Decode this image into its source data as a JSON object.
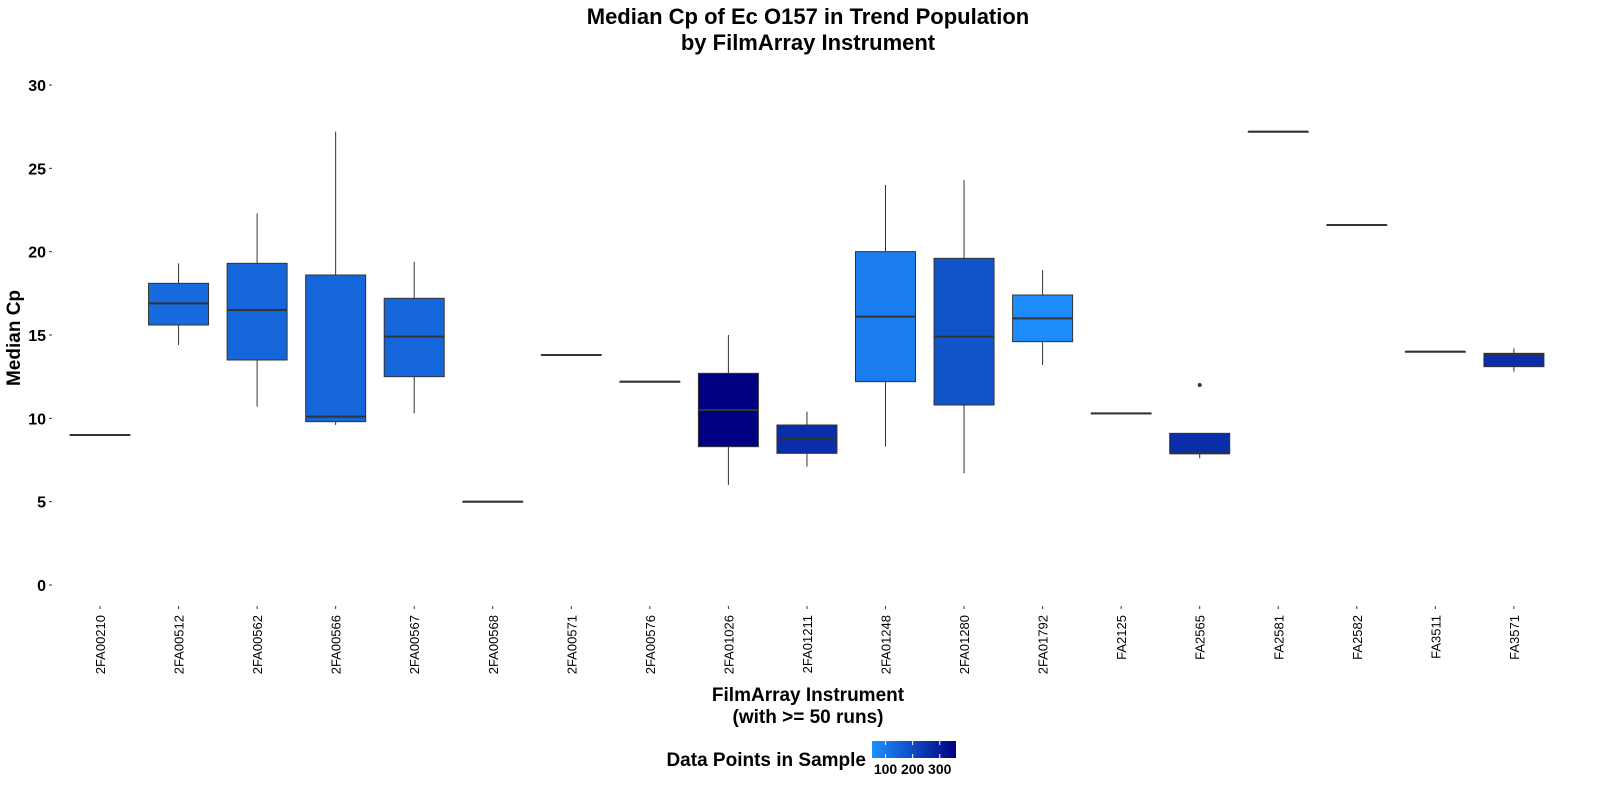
{
  "chart_data": {
    "type": "boxplot",
    "title": "Median Cp of Ec O157 in Trend Population",
    "subtitle": "by FilmArray Instrument",
    "xlabel": "FilmArray Instrument",
    "xlabel_line2": "(with >= 50 runs)",
    "ylabel": "Median Cp",
    "ylim": [
      0,
      30
    ],
    "yticks": [
      0,
      5,
      10,
      15,
      20,
      25,
      30
    ],
    "grid": false,
    "legend": {
      "title": "Data Points in Sample",
      "placement": "bottom",
      "ticks": [
        100,
        200,
        300
      ],
      "range": [
        50,
        360
      ],
      "colors": [
        "#1E90FF",
        "#000080"
      ]
    },
    "categories": [
      "2FA00210",
      "2FA00512",
      "2FA00562",
      "2FA00566",
      "2FA00567",
      "2FA00568",
      "2FA00571",
      "2FA00576",
      "2FA01026",
      "2FA01211",
      "2FA01248",
      "2FA01280",
      "2FA01792",
      "FA2125",
      "FA2565",
      "FA2581",
      "FA2582",
      "FA3511",
      "FA3571"
    ],
    "boxes": [
      {
        "category": "2FA00210",
        "min": 9.0,
        "q1": 9.0,
        "median": 9.0,
        "q3": 9.0,
        "max": 9.0,
        "n": 200,
        "outliers": []
      },
      {
        "category": "2FA00512",
        "min": 14.4,
        "q1": 15.6,
        "median": 16.9,
        "q3": 18.1,
        "max": 19.3,
        "n": 130,
        "outliers": []
      },
      {
        "category": "2FA00562",
        "min": 10.7,
        "q1": 13.5,
        "median": 16.5,
        "q3": 19.3,
        "max": 22.3,
        "n": 140,
        "outliers": []
      },
      {
        "category": "2FA00566",
        "min": 9.6,
        "q1": 9.8,
        "median": 10.1,
        "q3": 18.6,
        "max": 27.2,
        "n": 140,
        "outliers": []
      },
      {
        "category": "2FA00567",
        "min": 10.3,
        "q1": 12.5,
        "median": 14.9,
        "q3": 17.2,
        "max": 19.4,
        "n": 140,
        "outliers": []
      },
      {
        "category": "2FA00568",
        "min": 5.0,
        "q1": 5.0,
        "median": 5.0,
        "q3": 5.0,
        "max": 5.0,
        "n": 200,
        "outliers": []
      },
      {
        "category": "2FA00571",
        "min": 13.8,
        "q1": 13.8,
        "median": 13.8,
        "q3": 13.8,
        "max": 13.8,
        "n": 200,
        "outliers": []
      },
      {
        "category": "2FA00576",
        "min": 12.2,
        "q1": 12.2,
        "median": 12.2,
        "q3": 12.2,
        "max": 12.2,
        "n": 200,
        "outliers": []
      },
      {
        "category": "2FA01026",
        "min": 6.0,
        "q1": 8.3,
        "median": 10.5,
        "q3": 12.7,
        "max": 15.0,
        "n": 360,
        "outliers": []
      },
      {
        "category": "2FA01211",
        "min": 7.1,
        "q1": 7.9,
        "median": 8.8,
        "q3": 9.6,
        "max": 10.4,
        "n": 260,
        "outliers": []
      },
      {
        "category": "2FA01248",
        "min": 8.3,
        "q1": 12.2,
        "median": 16.1,
        "q3": 20.0,
        "max": 24.0,
        "n": 90,
        "outliers": []
      },
      {
        "category": "2FA01280",
        "min": 6.7,
        "q1": 10.8,
        "median": 14.9,
        "q3": 19.6,
        "max": 24.3,
        "n": 180,
        "outliers": []
      },
      {
        "category": "2FA01792",
        "min": 13.2,
        "q1": 14.6,
        "median": 16.0,
        "q3": 17.4,
        "max": 18.9,
        "n": 60,
        "outliers": []
      },
      {
        "category": "FA2125",
        "min": 10.3,
        "q1": 10.3,
        "median": 10.3,
        "q3": 10.3,
        "max": 10.3,
        "n": 200,
        "outliers": []
      },
      {
        "category": "FA2565",
        "min": 7.6,
        "q1": 7.9,
        "median": 7.9,
        "q3": 9.1,
        "max": 9.1,
        "n": 260,
        "outliers": [
          12.0
        ]
      },
      {
        "category": "FA2581",
        "min": 27.2,
        "q1": 27.2,
        "median": 27.2,
        "q3": 27.2,
        "max": 27.2,
        "n": 200,
        "outliers": []
      },
      {
        "category": "FA2582",
        "min": 21.6,
        "q1": 21.6,
        "median": 21.6,
        "q3": 21.6,
        "max": 21.6,
        "n": 200,
        "outliers": []
      },
      {
        "category": "FA3511",
        "min": 14.0,
        "q1": 14.0,
        "median": 14.0,
        "q3": 14.0,
        "max": 14.0,
        "n": 200,
        "outliers": []
      },
      {
        "category": "FA3571",
        "min": 12.8,
        "q1": 13.1,
        "median": 13.8,
        "q3": 13.9,
        "max": 14.2,
        "n": 260,
        "outliers": []
      }
    ]
  }
}
